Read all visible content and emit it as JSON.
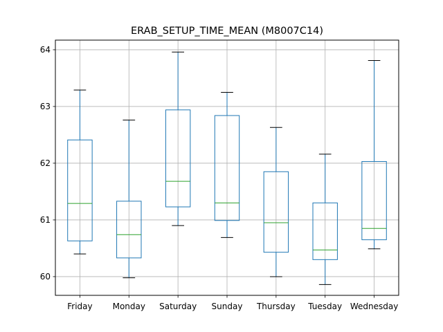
{
  "chart_data": {
    "type": "box",
    "title": "ERAB_SETUP_TIME_MEAN (M8007C14)",
    "xlabel": "",
    "ylabel": "",
    "ylim": [
      59.67,
      64.17
    ],
    "yticks": [
      60,
      61,
      62,
      63,
      64
    ],
    "grid": true,
    "colors": {
      "box": "#1f77b4",
      "median": "#2ca02c",
      "whisker_cap": "#000000",
      "grid": "#b0b0b0"
    },
    "categories": [
      "Friday",
      "Monday",
      "Saturday",
      "Sunday",
      "Thursday",
      "Tuesday",
      "Wednesday"
    ],
    "boxes": [
      {
        "category": "Friday",
        "whislo": 60.4,
        "q1": 60.63,
        "med": 61.29,
        "q3": 62.41,
        "whishi": 63.29
      },
      {
        "category": "Monday",
        "whislo": 59.98,
        "q1": 60.33,
        "med": 60.74,
        "q3": 61.33,
        "whishi": 62.76
      },
      {
        "category": "Saturday",
        "whislo": 60.9,
        "q1": 61.23,
        "med": 61.68,
        "q3": 62.94,
        "whishi": 63.96
      },
      {
        "category": "Sunday",
        "whislo": 60.69,
        "q1": 60.99,
        "med": 61.3,
        "q3": 62.84,
        "whishi": 63.25
      },
      {
        "category": "Thursday",
        "whislo": 60.0,
        "q1": 60.43,
        "med": 60.95,
        "q3": 61.85,
        "whishi": 62.63
      },
      {
        "category": "Tuesday",
        "whislo": 59.86,
        "q1": 60.3,
        "med": 60.47,
        "q3": 61.3,
        "whishi": 62.16
      },
      {
        "category": "Wednesday",
        "whislo": 60.49,
        "q1": 60.65,
        "med": 60.85,
        "q3": 62.03,
        "whishi": 63.81
      }
    ]
  }
}
